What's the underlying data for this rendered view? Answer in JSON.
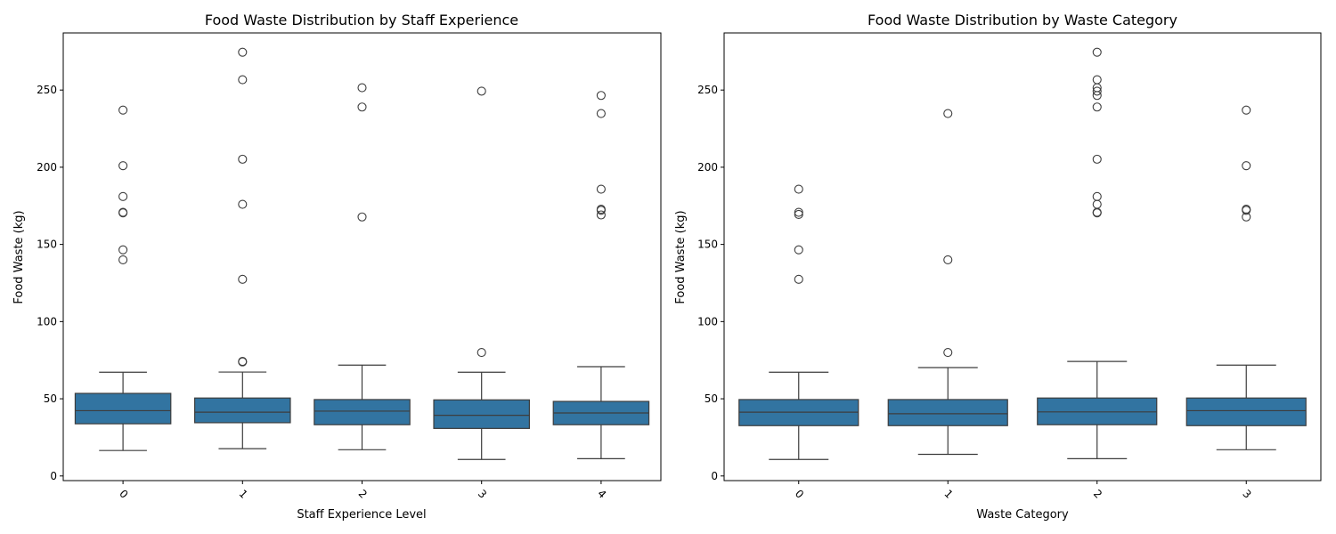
{
  "chart_data": [
    {
      "type": "box",
      "title": "Food Waste Distribution by Staff Experience",
      "xlabel": "Staff Experience Level",
      "ylabel": "Food Waste (kg)",
      "categories": [
        "0",
        "1",
        "2",
        "3",
        "4"
      ],
      "ylim": [
        -3,
        287
      ],
      "yticks": [
        0,
        50,
        100,
        150,
        200,
        250
      ],
      "grid": false,
      "box_color": "#3274a1",
      "boxes": [
        {
          "whisker_low": 16.5,
          "q1": 33.8,
          "median": 42.3,
          "q3": 53.5,
          "whisker_high": 67.2,
          "outliers": [
            237,
            201,
            181,
            170.8,
            170.4,
            146.5,
            140
          ]
        },
        {
          "whisker_low": 17.7,
          "q1": 34.5,
          "median": 41.3,
          "q3": 50.5,
          "whisker_high": 67.3,
          "outliers": [
            274.5,
            256.7,
            205.2,
            176,
            127.4,
            74.2,
            73.9
          ]
        },
        {
          "whisker_low": 17,
          "q1": 33.2,
          "median": 42,
          "q3": 49.5,
          "whisker_high": 71.8,
          "outliers": [
            251.5,
            239,
            167.8
          ]
        },
        {
          "whisker_low": 10.7,
          "q1": 30.8,
          "median": 39.3,
          "q3": 49.3,
          "whisker_high": 67.2,
          "outliers": [
            249.3,
            80
          ]
        },
        {
          "whisker_low": 11.2,
          "q1": 33.2,
          "median": 40.8,
          "q3": 48.3,
          "whisker_high": 70.8,
          "outliers": [
            246.5,
            234.8,
            185.8,
            172.8,
            172.1,
            169.1
          ]
        }
      ]
    },
    {
      "type": "box",
      "title": "Food Waste Distribution by Waste Category",
      "xlabel": "Waste Category",
      "ylabel": "Food Waste (kg)",
      "categories": [
        "0",
        "1",
        "2",
        "3"
      ],
      "ylim": [
        -3,
        287
      ],
      "yticks": [
        0,
        50,
        100,
        150,
        200,
        250
      ],
      "grid": false,
      "box_color": "#3274a1",
      "boxes": [
        {
          "whisker_low": 10.7,
          "q1": 32.6,
          "median": 41.3,
          "q3": 49.5,
          "whisker_high": 67.2,
          "outliers": [
            185.8,
            170.8,
            169.4,
            146.5,
            127.4
          ]
        },
        {
          "whisker_low": 14,
          "q1": 32.6,
          "median": 40.3,
          "q3": 49.5,
          "whisker_high": 70.2,
          "outliers": [
            234.8,
            140,
            80
          ]
        },
        {
          "whisker_low": 11.2,
          "q1": 33.2,
          "median": 41.5,
          "q3": 50.5,
          "whisker_high": 74.2,
          "outliers": [
            274.5,
            256.7,
            251.5,
            249.3,
            246.5,
            239,
            205.2,
            181,
            176,
            170.8,
            170.4
          ]
        },
        {
          "whisker_low": 17,
          "q1": 32.6,
          "median": 42.3,
          "q3": 50.5,
          "whisker_high": 71.8,
          "outliers": [
            237,
            201,
            172.8,
            172.1,
            167.8
          ]
        }
      ]
    }
  ]
}
